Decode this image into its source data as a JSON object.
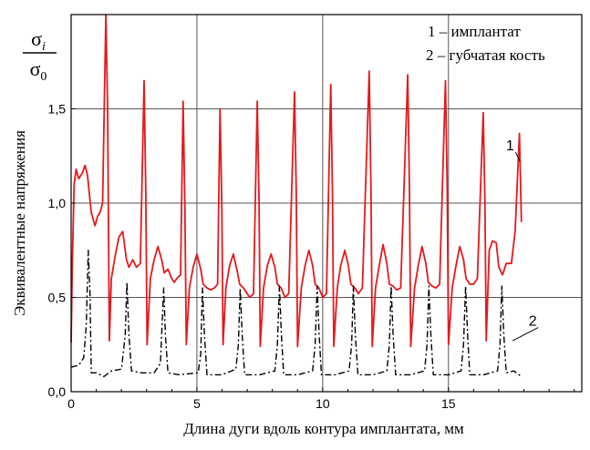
{
  "chart_data": {
    "type": "line",
    "title": "",
    "xlabel": "Длина дуги вдоль контура имплантата, мм",
    "ylabel": "Эквивалентные напряжения",
    "ylabel_fraction": {
      "numerator": "σ",
      "numerator_sub": "i",
      "denominator": "σ",
      "denominator_sub": "0"
    },
    "xlim": [
      0,
      20.3
    ],
    "ylim": [
      0,
      2.0
    ],
    "x_ticks": [
      0,
      5,
      10,
      15
    ],
    "x_tick_labels": [
      "0",
      "5",
      "10",
      "15"
    ],
    "y_ticks": [
      0,
      0.5,
      1.0,
      1.5
    ],
    "y_tick_labels": [
      "0,0",
      "0,5",
      "1,0",
      "1,5"
    ],
    "grid": true,
    "legend_position": "top-right",
    "legend": [
      "1 – имплантат",
      "2 – губчатая кость"
    ],
    "series": [
      {
        "name": "1",
        "color": "#e31a1c",
        "style": "solid",
        "points": [
          [
            0.0,
            0.26
          ],
          [
            0.05,
            0.7
          ],
          [
            0.12,
            1.1
          ],
          [
            0.2,
            1.18
          ],
          [
            0.3,
            1.13
          ],
          [
            0.45,
            1.16
          ],
          [
            0.55,
            1.2
          ],
          [
            0.65,
            1.15
          ],
          [
            0.8,
            0.95
          ],
          [
            0.95,
            0.88
          ],
          [
            1.05,
            0.93
          ],
          [
            1.15,
            0.95
          ],
          [
            1.25,
            1.0
          ],
          [
            1.38,
            2.0
          ],
          [
            1.45,
            1.5
          ],
          [
            1.52,
            0.27
          ],
          [
            1.6,
            0.6
          ],
          [
            1.75,
            0.72
          ],
          [
            1.9,
            0.82
          ],
          [
            2.05,
            0.85
          ],
          [
            2.2,
            0.7
          ],
          [
            2.3,
            0.66
          ],
          [
            2.45,
            0.7
          ],
          [
            2.6,
            0.66
          ],
          [
            2.75,
            0.68
          ],
          [
            2.9,
            1.65
          ],
          [
            2.97,
            1.05
          ],
          [
            3.02,
            0.25
          ],
          [
            3.15,
            0.6
          ],
          [
            3.3,
            0.7
          ],
          [
            3.45,
            0.77
          ],
          [
            3.6,
            0.7
          ],
          [
            3.7,
            0.63
          ],
          [
            3.85,
            0.65
          ],
          [
            4.0,
            0.6
          ],
          [
            4.1,
            0.58
          ],
          [
            4.2,
            0.6
          ],
          [
            4.35,
            0.62
          ],
          [
            4.45,
            1.54
          ],
          [
            4.52,
            1.0
          ],
          [
            4.58,
            0.25
          ],
          [
            4.7,
            0.55
          ],
          [
            4.85,
            0.66
          ],
          [
            5.0,
            0.73
          ],
          [
            5.15,
            0.65
          ],
          [
            5.25,
            0.57
          ],
          [
            5.4,
            0.55
          ],
          [
            5.55,
            0.54
          ],
          [
            5.7,
            0.55
          ],
          [
            5.82,
            0.57
          ],
          [
            5.92,
            1.5
          ],
          [
            5.99,
            1.0
          ],
          [
            6.04,
            0.25
          ],
          [
            6.15,
            0.55
          ],
          [
            6.3,
            0.67
          ],
          [
            6.45,
            0.73
          ],
          [
            6.6,
            0.64
          ],
          [
            6.7,
            0.57
          ],
          [
            6.85,
            0.55
          ],
          [
            7.0,
            0.52
          ],
          [
            7.1,
            0.5
          ],
          [
            7.25,
            0.52
          ],
          [
            7.4,
            1.54
          ],
          [
            7.47,
            1.0
          ],
          [
            7.52,
            0.24
          ],
          [
            7.65,
            0.55
          ],
          [
            7.8,
            0.67
          ],
          [
            7.95,
            0.73
          ],
          [
            8.1,
            0.66
          ],
          [
            8.2,
            0.57
          ],
          [
            8.35,
            0.55
          ],
          [
            8.5,
            0.5
          ],
          [
            8.65,
            0.52
          ],
          [
            8.88,
            1.59
          ],
          [
            8.95,
            1.05
          ],
          [
            9.0,
            0.24
          ],
          [
            9.15,
            0.55
          ],
          [
            9.3,
            0.67
          ],
          [
            9.45,
            0.75
          ],
          [
            9.6,
            0.67
          ],
          [
            9.7,
            0.57
          ],
          [
            9.85,
            0.55
          ],
          [
            10.0,
            0.5
          ],
          [
            10.15,
            0.52
          ],
          [
            10.32,
            1.63
          ],
          [
            10.39,
            1.05
          ],
          [
            10.44,
            0.24
          ],
          [
            10.58,
            0.55
          ],
          [
            10.72,
            0.67
          ],
          [
            10.88,
            0.75
          ],
          [
            11.02,
            0.67
          ],
          [
            11.12,
            0.57
          ],
          [
            11.28,
            0.55
          ],
          [
            11.42,
            0.52
          ],
          [
            11.58,
            0.55
          ],
          [
            11.85,
            1.7
          ],
          [
            11.92,
            1.08
          ],
          [
            11.97,
            0.24
          ],
          [
            12.1,
            0.55
          ],
          [
            12.25,
            0.67
          ],
          [
            12.4,
            0.78
          ],
          [
            12.55,
            0.68
          ],
          [
            12.65,
            0.57
          ],
          [
            12.8,
            0.56
          ],
          [
            12.95,
            0.54
          ],
          [
            13.1,
            0.55
          ],
          [
            13.38,
            1.68
          ],
          [
            13.45,
            1.08
          ],
          [
            13.5,
            0.24
          ],
          [
            13.65,
            0.55
          ],
          [
            13.8,
            0.67
          ],
          [
            13.95,
            0.77
          ],
          [
            14.1,
            0.68
          ],
          [
            14.2,
            0.58
          ],
          [
            14.35,
            0.56
          ],
          [
            14.5,
            0.55
          ],
          [
            14.65,
            0.57
          ],
          [
            14.88,
            1.65
          ],
          [
            14.95,
            1.08
          ],
          [
            15.0,
            0.25
          ],
          [
            15.15,
            0.55
          ],
          [
            15.3,
            0.67
          ],
          [
            15.45,
            0.77
          ],
          [
            15.6,
            0.7
          ],
          [
            15.7,
            0.6
          ],
          [
            15.85,
            0.57
          ],
          [
            16.0,
            0.57
          ],
          [
            16.15,
            0.6
          ],
          [
            16.38,
            1.48
          ],
          [
            16.45,
            1.0
          ],
          [
            16.5,
            0.27
          ],
          [
            16.62,
            0.75
          ],
          [
            16.75,
            0.8
          ],
          [
            16.9,
            0.79
          ],
          [
            17.0,
            0.66
          ],
          [
            17.15,
            0.62
          ],
          [
            17.3,
            0.68
          ],
          [
            17.5,
            0.68
          ],
          [
            17.65,
            0.85
          ],
          [
            17.82,
            1.37
          ],
          [
            17.9,
            0.9
          ]
        ]
      },
      {
        "name": "2",
        "color": "#000000",
        "style": "dash-dot",
        "points": [
          [
            0.0,
            0.13
          ],
          [
            0.3,
            0.14
          ],
          [
            0.5,
            0.18
          ],
          [
            0.6,
            0.35
          ],
          [
            0.68,
            0.75
          ],
          [
            0.75,
            0.52
          ],
          [
            0.8,
            0.1
          ],
          [
            1.0,
            0.1
          ],
          [
            1.3,
            0.08
          ],
          [
            1.6,
            0.11
          ],
          [
            2.0,
            0.12
          ],
          [
            2.15,
            0.3
          ],
          [
            2.22,
            0.58
          ],
          [
            2.3,
            0.3
          ],
          [
            2.4,
            0.11
          ],
          [
            2.8,
            0.1
          ],
          [
            3.3,
            0.1
          ],
          [
            3.55,
            0.15
          ],
          [
            3.68,
            0.55
          ],
          [
            3.75,
            0.3
          ],
          [
            3.85,
            0.1
          ],
          [
            4.3,
            0.09
          ],
          [
            5.05,
            0.1
          ],
          [
            5.15,
            0.2
          ],
          [
            5.22,
            0.55
          ],
          [
            5.3,
            0.3
          ],
          [
            5.4,
            0.09
          ],
          [
            6.0,
            0.09
          ],
          [
            6.55,
            0.12
          ],
          [
            6.65,
            0.25
          ],
          [
            6.72,
            0.55
          ],
          [
            6.8,
            0.3
          ],
          [
            6.9,
            0.09
          ],
          [
            7.5,
            0.09
          ],
          [
            8.1,
            0.11
          ],
          [
            8.2,
            0.25
          ],
          [
            8.28,
            0.56
          ],
          [
            8.36,
            0.3
          ],
          [
            8.45,
            0.09
          ],
          [
            9.0,
            0.09
          ],
          [
            9.6,
            0.11
          ],
          [
            9.7,
            0.25
          ],
          [
            9.78,
            0.56
          ],
          [
            9.86,
            0.3
          ],
          [
            9.95,
            0.09
          ],
          [
            10.5,
            0.09
          ],
          [
            11.05,
            0.11
          ],
          [
            11.15,
            0.25
          ],
          [
            11.22,
            0.56
          ],
          [
            11.3,
            0.3
          ],
          [
            11.4,
            0.09
          ],
          [
            12.0,
            0.09
          ],
          [
            12.55,
            0.11
          ],
          [
            12.65,
            0.25
          ],
          [
            12.72,
            0.56
          ],
          [
            12.8,
            0.3
          ],
          [
            12.9,
            0.09
          ],
          [
            13.5,
            0.09
          ],
          [
            14.05,
            0.11
          ],
          [
            14.15,
            0.25
          ],
          [
            14.22,
            0.56
          ],
          [
            14.3,
            0.3
          ],
          [
            14.4,
            0.09
          ],
          [
            15.0,
            0.09
          ],
          [
            15.5,
            0.11
          ],
          [
            15.6,
            0.25
          ],
          [
            15.68,
            0.56
          ],
          [
            15.76,
            0.3
          ],
          [
            15.85,
            0.09
          ],
          [
            16.4,
            0.09
          ],
          [
            16.95,
            0.11
          ],
          [
            17.05,
            0.25
          ],
          [
            17.12,
            0.56
          ],
          [
            17.2,
            0.3
          ],
          [
            17.3,
            0.1
          ],
          [
            17.6,
            0.11
          ],
          [
            17.9,
            0.08
          ]
        ]
      }
    ],
    "annotations": [
      {
        "text": "1",
        "x": 17.45,
        "y": 1.28,
        "arrow_to": [
          17.85,
          1.22
        ]
      },
      {
        "text": "2",
        "x": 18.35,
        "y": 0.35,
        "arrow_to": [
          17.55,
          0.27
        ]
      }
    ]
  }
}
